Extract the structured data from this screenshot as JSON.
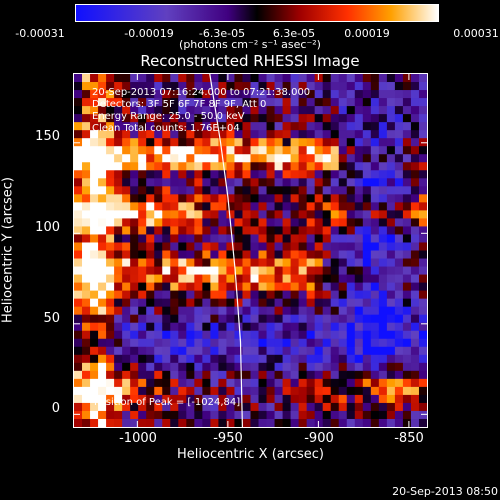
{
  "colorbar": {
    "ticks": [
      "-0.00031",
      "-0.00019",
      "-6.3e-05",
      "6.3e-05",
      "0.00019",
      "0.00031"
    ],
    "unit": "(photons cm⁻² s⁻¹ asec⁻²)",
    "range": [
      -0.00031,
      0.00031
    ]
  },
  "chart_data": {
    "type": "heatmap",
    "title": "Reconstructed RHESSI Image",
    "xlabel": "Heliocentric X (arcsec)",
    "ylabel": "Heliocentric Y (arcsec)",
    "xlim": [
      -1035,
      -840
    ],
    "ylim": [
      -7,
      188
    ],
    "x_ticks": [
      "-1000",
      "-950",
      "-900",
      "-850"
    ],
    "x_tick_values": [
      -1000,
      -950,
      -900,
      -850
    ],
    "y_ticks": [
      "0",
      "50",
      "100",
      "150"
    ],
    "y_tick_values": [
      0,
      50,
      100,
      150
    ],
    "grid": false,
    "limb_line": [
      [
        -960,
        188
      ],
      [
        -954,
        150
      ],
      [
        -950,
        120
      ],
      [
        -946,
        80
      ],
      [
        -943,
        40
      ],
      [
        -942,
        -7
      ]
    ],
    "annotations": {
      "time": "20-Sep-2013 07:16:24.000 to 07:21:38.000",
      "detectors": "Detectors: 3F 5F 6F 7F 8F 9F, Att 0",
      "energy": "Energy Range: 25.0 - 50.0 keV",
      "clean": "Clean     Total counts: 1.76E+04",
      "peak": "Position of Peak = [-1024,84]"
    }
  },
  "footer": {
    "date": "20-Sep-2013 08:50"
  }
}
